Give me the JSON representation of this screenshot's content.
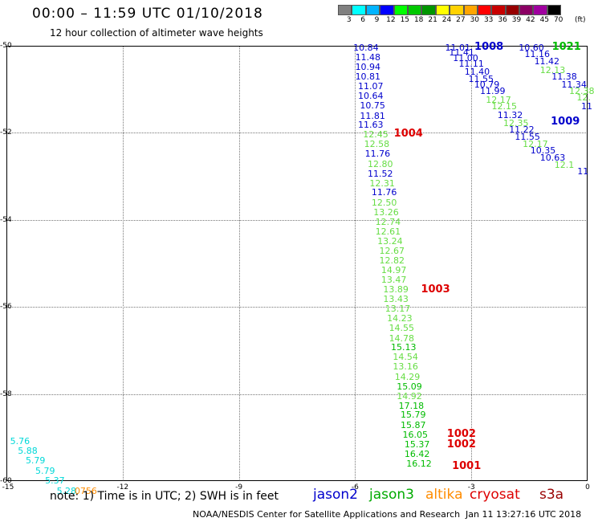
{
  "title": "00:00 – 11:59 UTC 01/10/2018",
  "subtitle": "12 hour collection of altimeter wave heights",
  "colorscale": {
    "units": "(ft)",
    "bins": [
      {
        "label": "3",
        "color": "#808080"
      },
      {
        "label": "6",
        "color": "#00ffff"
      },
      {
        "label": "9",
        "color": "#00b4ff"
      },
      {
        "label": "12",
        "color": "#0000ff"
      },
      {
        "label": "15",
        "color": "#00ff00"
      },
      {
        "label": "18",
        "color": "#00c800"
      },
      {
        "label": "21",
        "color": "#009600"
      },
      {
        "label": "24",
        "color": "#ffff00"
      },
      {
        "label": "27",
        "color": "#ffd200"
      },
      {
        "label": "30",
        "color": "#ffa500"
      },
      {
        "label": "33",
        "color": "#ff0000"
      },
      {
        "label": "36",
        "color": "#c80000"
      },
      {
        "label": "39",
        "color": "#960000"
      },
      {
        "label": "42",
        "color": "#8b0064"
      },
      {
        "label": "45",
        "color": "#a000a0"
      },
      {
        "label": "70",
        "color": "#000000"
      }
    ]
  },
  "axes": {
    "lon_ticks": [
      "-15",
      "-12",
      "-9",
      "-6",
      "-3",
      "0"
    ],
    "lat_ticks": [
      "-50",
      "-52",
      "-54",
      "-56",
      "-58",
      "-60"
    ]
  },
  "satellite_colors": {
    "cyan": "#00d8d8",
    "blue": "#0000cc",
    "green": "#00bb00",
    "lightgreen": "#66dd44",
    "red": "#dd0000",
    "orange": "#ff8c00"
  },
  "wave_heights": [
    {
      "v": "10.84",
      "c": "blue",
      "lon": -5.72,
      "lat": -50.0
    },
    {
      "v": "11.48",
      "c": "blue",
      "lon": -5.67,
      "lat": -50.22
    },
    {
      "v": "10.94",
      "c": "blue",
      "lon": -5.67,
      "lat": -50.44
    },
    {
      "v": "10.81",
      "c": "blue",
      "lon": -5.67,
      "lat": -50.67
    },
    {
      "v": "11.07",
      "c": "blue",
      "lon": -5.6,
      "lat": -50.89
    },
    {
      "v": "10.64",
      "c": "blue",
      "lon": -5.6,
      "lat": -51.11
    },
    {
      "v": "10.75",
      "c": "blue",
      "lon": -5.55,
      "lat": -51.33
    },
    {
      "v": "11.81",
      "c": "blue",
      "lon": -5.55,
      "lat": -51.56
    },
    {
      "v": "11.63",
      "c": "blue",
      "lon": -5.6,
      "lat": -51.78
    },
    {
      "v": "12.45",
      "c": "lightgreen",
      "lon": -5.47,
      "lat": -52.0
    },
    {
      "v": "12.58",
      "c": "lightgreen",
      "lon": -5.44,
      "lat": -52.22
    },
    {
      "v": "11.76",
      "c": "blue",
      "lon": -5.42,
      "lat": -52.44
    },
    {
      "v": "12.80",
      "c": "lightgreen",
      "lon": -5.35,
      "lat": -52.67
    },
    {
      "v": "11.52",
      "c": "blue",
      "lon": -5.35,
      "lat": -52.89
    },
    {
      "v": "12.31",
      "c": "lightgreen",
      "lon": -5.3,
      "lat": -53.11
    },
    {
      "v": "11.76",
      "c": "blue",
      "lon": -5.25,
      "lat": -53.33
    },
    {
      "v": "12.50",
      "c": "lightgreen",
      "lon": -5.25,
      "lat": -53.56
    },
    {
      "v": "13.26",
      "c": "lightgreen",
      "lon": -5.2,
      "lat": -53.78
    },
    {
      "v": "12.74",
      "c": "lightgreen",
      "lon": -5.15,
      "lat": -54.0
    },
    {
      "v": "12.61",
      "c": "lightgreen",
      "lon": -5.15,
      "lat": -54.22
    },
    {
      "v": "13.24",
      "c": "lightgreen",
      "lon": -5.1,
      "lat": -54.44
    },
    {
      "v": "12.67",
      "c": "lightgreen",
      "lon": -5.05,
      "lat": -54.67
    },
    {
      "v": "12.82",
      "c": "lightgreen",
      "lon": -5.05,
      "lat": -54.89
    },
    {
      "v": "14.97",
      "c": "lightgreen",
      "lon": -5.0,
      "lat": -55.11
    },
    {
      "v": "13.47",
      "c": "lightgreen",
      "lon": -5.0,
      "lat": -55.33
    },
    {
      "v": "13.89",
      "c": "lightgreen",
      "lon": -4.95,
      "lat": -55.56
    },
    {
      "v": "13.43",
      "c": "lightgreen",
      "lon": -4.95,
      "lat": -55.78
    },
    {
      "v": "13.17",
      "c": "lightgreen",
      "lon": -4.9,
      "lat": -56.0
    },
    {
      "v": "14.23",
      "c": "lightgreen",
      "lon": -4.85,
      "lat": -56.22
    },
    {
      "v": "14.55",
      "c": "lightgreen",
      "lon": -4.8,
      "lat": -56.44
    },
    {
      "v": "14.78",
      "c": "lightgreen",
      "lon": -4.8,
      "lat": -56.67
    },
    {
      "v": "15.13",
      "c": "green",
      "lon": -4.75,
      "lat": -56.89
    },
    {
      "v": "14.54",
      "c": "lightgreen",
      "lon": -4.7,
      "lat": -57.11
    },
    {
      "v": "13.16",
      "c": "lightgreen",
      "lon": -4.7,
      "lat": -57.33
    },
    {
      "v": "14.29",
      "c": "lightgreen",
      "lon": -4.65,
      "lat": -57.56
    },
    {
      "v": "15.09",
      "c": "green",
      "lon": -4.6,
      "lat": -57.78
    },
    {
      "v": "14.92",
      "c": "lightgreen",
      "lon": -4.6,
      "lat": -58.0
    },
    {
      "v": "17.18",
      "c": "green",
      "lon": -4.55,
      "lat": -58.22
    },
    {
      "v": "15.79",
      "c": "green",
      "lon": -4.5,
      "lat": -58.44
    },
    {
      "v": "15.87",
      "c": "green",
      "lon": -4.5,
      "lat": -58.67
    },
    {
      "v": "16.05",
      "c": "green",
      "lon": -4.45,
      "lat": -58.89
    },
    {
      "v": "15.37",
      "c": "green",
      "lon": -4.4,
      "lat": -59.11
    },
    {
      "v": "16.42",
      "c": "green",
      "lon": -4.4,
      "lat": -59.33
    },
    {
      "v": "16.12",
      "c": "green",
      "lon": -4.35,
      "lat": -59.56
    },
    {
      "v": "11.01",
      "c": "blue",
      "lon": -3.35,
      "lat": -50.0
    },
    {
      "v": "11.41",
      "c": "blue",
      "lon": -3.25,
      "lat": -50.11
    },
    {
      "v": "11.00",
      "c": "blue",
      "lon": -3.15,
      "lat": -50.24
    },
    {
      "v": "11.11",
      "c": "blue",
      "lon": -3.0,
      "lat": -50.37
    },
    {
      "v": "11.40",
      "c": "blue",
      "lon": -2.85,
      "lat": -50.55
    },
    {
      "v": "11.55",
      "c": "blue",
      "lon": -2.75,
      "lat": -50.72
    },
    {
      "v": "10.79",
      "c": "blue",
      "lon": -2.6,
      "lat": -50.85
    },
    {
      "v": "11.99",
      "c": "blue",
      "lon": -2.45,
      "lat": -51.0
    },
    {
      "v": "12.17",
      "c": "lightgreen",
      "lon": -2.3,
      "lat": -51.2
    },
    {
      "v": "12.15",
      "c": "lightgreen",
      "lon": -2.15,
      "lat": -51.35
    },
    {
      "v": "11.32",
      "c": "blue",
      "lon": -2.0,
      "lat": -51.55
    },
    {
      "v": "12.35",
      "c": "lightgreen",
      "lon": -1.85,
      "lat": -51.73
    },
    {
      "v": "11.22",
      "c": "blue",
      "lon": -1.7,
      "lat": -51.88
    },
    {
      "v": "11.55",
      "c": "blue",
      "lon": -1.55,
      "lat": -52.04
    },
    {
      "v": "12.17",
      "c": "lightgreen",
      "lon": -1.35,
      "lat": -52.22
    },
    {
      "v": "10.35",
      "c": "blue",
      "lon": -1.15,
      "lat": -52.37
    },
    {
      "v": "10.63",
      "c": "blue",
      "lon": -0.9,
      "lat": -52.53
    },
    {
      "v": "12.1",
      "c": "lightgreen",
      "lon": -0.6,
      "lat": -52.7
    },
    {
      "v": "11",
      "c": "blue",
      "lon": -0.12,
      "lat": -52.85
    },
    {
      "v": "10.60",
      "c": "blue",
      "lon": -1.45,
      "lat": -50.0
    },
    {
      "v": "11.16",
      "c": "blue",
      "lon": -1.3,
      "lat": -50.14
    },
    {
      "v": "11.42",
      "c": "blue",
      "lon": -1.05,
      "lat": -50.31
    },
    {
      "v": "12.13",
      "c": "lightgreen",
      "lon": -0.9,
      "lat": -50.52
    },
    {
      "v": "11.38",
      "c": "blue",
      "lon": -0.6,
      "lat": -50.66
    },
    {
      "v": "11.34",
      "c": "blue",
      "lon": -0.35,
      "lat": -50.84
    },
    {
      "v": "12.38",
      "c": "lightgreen",
      "lon": -0.15,
      "lat": -51.0
    },
    {
      "v": "12.",
      "c": "lightgreen",
      "lon": -0.1,
      "lat": -51.14
    },
    {
      "v": "11",
      "c": "blue",
      "lon": -0.02,
      "lat": -51.34
    },
    {
      "v": "5.76",
      "c": "cyan",
      "lon": -14.65,
      "lat": -59.04
    },
    {
      "v": "5.88",
      "c": "cyan",
      "lon": -14.45,
      "lat": -59.26
    },
    {
      "v": "5.79",
      "c": "cyan",
      "lon": -14.25,
      "lat": -59.48
    },
    {
      "v": "5.79",
      "c": "cyan",
      "lon": -14.0,
      "lat": -59.72
    },
    {
      "v": "5.37",
      "c": "cyan",
      "lon": -13.75,
      "lat": -59.95
    },
    {
      "v": "5.28",
      "c": "cyan",
      "lon": -13.45,
      "lat": -60.18
    },
    {
      "v": "0756",
      "c": "orange",
      "lon": -12.95,
      "lat": -60.18
    }
  ],
  "pressures": [
    {
      "v": "1004",
      "c": "red",
      "lon": -5.0,
      "lat": -52.0
    },
    {
      "v": "1003",
      "c": "red",
      "lon": -4.3,
      "lat": -55.57
    },
    {
      "v": "1002",
      "c": "red",
      "lon": -3.63,
      "lat": -58.9
    },
    {
      "v": "1002",
      "c": "red",
      "lon": -3.63,
      "lat": -59.13
    },
    {
      "v": "1001",
      "c": "red",
      "lon": -3.5,
      "lat": -59.63
    },
    {
      "v": "1008",
      "c": "blue",
      "lon": -2.92,
      "lat": -50.0
    },
    {
      "v": "1021",
      "c": "green",
      "lon": -0.92,
      "lat": -50.0
    },
    {
      "v": "1009",
      "c": "blue",
      "lon": -0.95,
      "lat": -51.72
    }
  ],
  "note": "note: 1) Time is in UTC; 2) SWH is in feet",
  "legend": [
    {
      "label": "jason2",
      "color": "#0000cc"
    },
    {
      "label": "jason3",
      "color": "#00aa00"
    },
    {
      "label": "altika",
      "color": "#ff8c00"
    },
    {
      "label": "cryosat",
      "color": "#dd0000"
    },
    {
      "label": "s3a",
      "color": "#990000"
    }
  ],
  "footer": "NOAA/NESDIS Center for Satellite Applications and Research",
  "timestamp": "Jan 11 13:27:16 UTC 2018"
}
